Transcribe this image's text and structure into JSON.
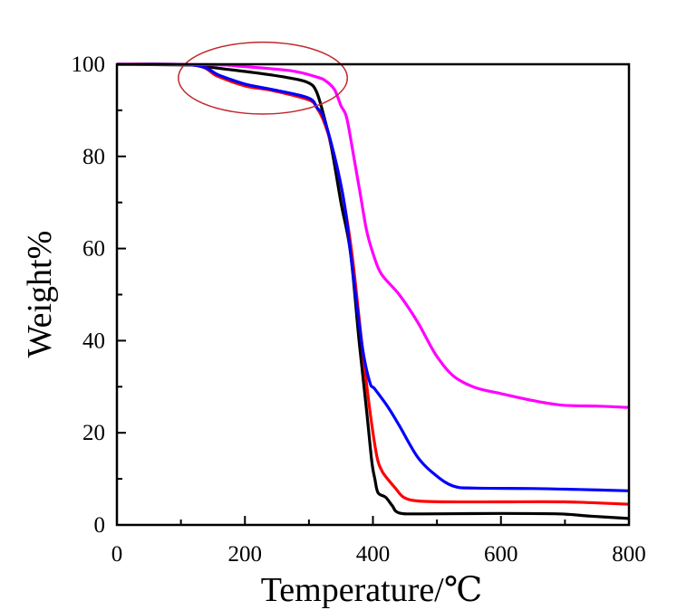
{
  "chart_data": {
    "type": "line",
    "title": "",
    "xlabel": "Temperature/℃",
    "ylabel": "Weight%",
    "xlim": [
      0,
      800
    ],
    "ylim": [
      0,
      100
    ],
    "xticks": [
      0,
      200,
      400,
      600,
      800
    ],
    "yticks": [
      0,
      20,
      40,
      60,
      80,
      100
    ],
    "grid": false,
    "legend": "none",
    "annotation": {
      "type": "ellipse",
      "description": "highlighted region around 100-330 ℃ early weight loss",
      "color": "#c0282b",
      "center": [
        228,
        97
      ],
      "radius": [
        132,
        7.8
      ]
    },
    "series": [
      {
        "name": "black",
        "color": "#000000",
        "points": [
          [
            0,
            100
          ],
          [
            130,
            99.8
          ],
          [
            143,
            99.4
          ],
          [
            214,
            98.2
          ],
          [
            271,
            97
          ],
          [
            299,
            96
          ],
          [
            311,
            94.3
          ],
          [
            321,
            90
          ],
          [
            335,
            82
          ],
          [
            350,
            70
          ],
          [
            365,
            59
          ],
          [
            379,
            39
          ],
          [
            390,
            25
          ],
          [
            398,
            14
          ],
          [
            403,
            10
          ],
          [
            408,
            7
          ],
          [
            420,
            6
          ],
          [
            430,
            4.2
          ],
          [
            441,
            2.6
          ],
          [
            480,
            2.4
          ],
          [
            600,
            2.5
          ],
          [
            690,
            2.4
          ],
          [
            740,
            1.9
          ],
          [
            800,
            1.4
          ]
        ]
      },
      {
        "name": "red",
        "color": "#ff0000",
        "points": [
          [
            0,
            100
          ],
          [
            120,
            99.8
          ],
          [
            157,
            97.4
          ],
          [
            200,
            95.3
          ],
          [
            243,
            94.3
          ],
          [
            299,
            92.3
          ],
          [
            313,
            90.4
          ],
          [
            325,
            87
          ],
          [
            340,
            80
          ],
          [
            355,
            70
          ],
          [
            368,
            58
          ],
          [
            383,
            39
          ],
          [
            395,
            25
          ],
          [
            406,
            15
          ],
          [
            413,
            12
          ],
          [
            420,
            10.5
          ],
          [
            435,
            8
          ],
          [
            448,
            6
          ],
          [
            470,
            5.2
          ],
          [
            520,
            5
          ],
          [
            600,
            5
          ],
          [
            700,
            5
          ],
          [
            800,
            4.5
          ]
        ]
      },
      {
        "name": "blue",
        "color": "#0000ff",
        "points": [
          [
            0,
            100
          ],
          [
            120,
            99.8
          ],
          [
            160,
            97.6
          ],
          [
            200,
            95.7
          ],
          [
            243,
            94.5
          ],
          [
            299,
            92.7
          ],
          [
            313,
            90.5
          ],
          [
            323,
            88.4
          ],
          [
            340,
            80
          ],
          [
            355,
            70
          ],
          [
            365,
            59
          ],
          [
            383,
            39
          ],
          [
            395,
            31
          ],
          [
            403,
            29.5
          ],
          [
            424,
            25.5
          ],
          [
            441,
            21.6
          ],
          [
            470,
            14.7
          ],
          [
            498,
            10.8
          ],
          [
            526,
            8.4
          ],
          [
            560,
            8
          ],
          [
            650,
            7.9
          ],
          [
            720,
            7.7
          ],
          [
            800,
            7.4
          ]
        ]
      },
      {
        "name": "magenta",
        "color": "#ff00ff",
        "points": [
          [
            0,
            100
          ],
          [
            150,
            99.9
          ],
          [
            190,
            99.6
          ],
          [
            271,
            98.6
          ],
          [
            313,
            97.2
          ],
          [
            327,
            96.3
          ],
          [
            340,
            94.5
          ],
          [
            350,
            91
          ],
          [
            359,
            88.4
          ],
          [
            370,
            80
          ],
          [
            380,
            72
          ],
          [
            390,
            64
          ],
          [
            400,
            59
          ],
          [
            413,
            54.5
          ],
          [
            441,
            50
          ],
          [
            470,
            44
          ],
          [
            498,
            37
          ],
          [
            526,
            32.3
          ],
          [
            560,
            29.8
          ],
          [
            600,
            28.5
          ],
          [
            650,
            27
          ],
          [
            696,
            26
          ],
          [
            750,
            25.8
          ],
          [
            800,
            25.5
          ]
        ]
      }
    ]
  }
}
